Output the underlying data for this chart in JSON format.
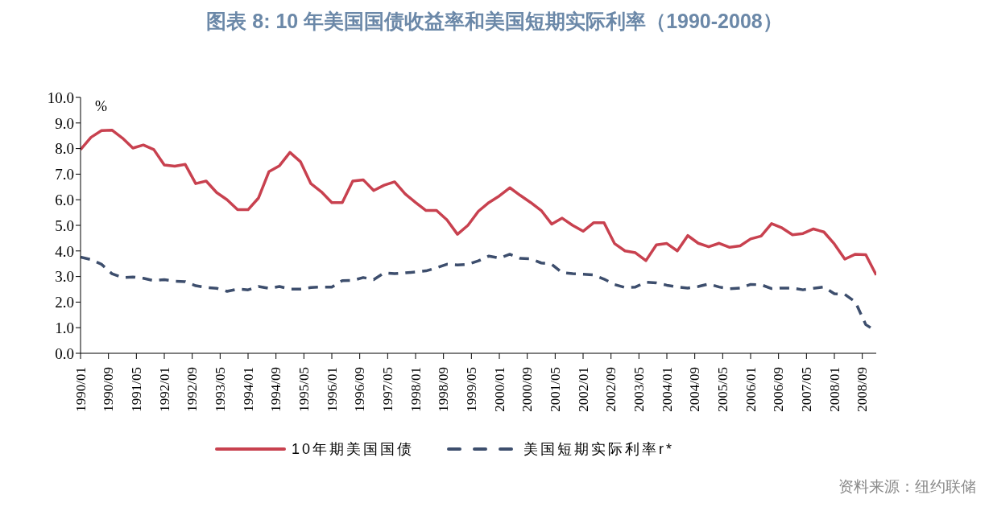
{
  "chart_data": {
    "type": "line",
    "title": "图表 8: 10 年美国国债收益率和美国短期实际利率（1990-2008）",
    "ylabel": "%",
    "x": [
      "1990-01",
      "1990-04",
      "1990-07",
      "1990-10",
      "1991-01",
      "1991-04",
      "1991-07",
      "1991-10",
      "1992-01",
      "1992-04",
      "1992-07",
      "1992-10",
      "1993-01",
      "1993-04",
      "1993-07",
      "1993-10",
      "1994-01",
      "1994-04",
      "1994-07",
      "1994-10",
      "1995-01",
      "1995-04",
      "1995-07",
      "1995-10",
      "1996-01",
      "1996-04",
      "1996-07",
      "1996-10",
      "1997-01",
      "1997-04",
      "1997-07",
      "1997-10",
      "1998-01",
      "1998-04",
      "1998-07",
      "1998-10",
      "1999-01",
      "1999-04",
      "1999-07",
      "1999-10",
      "2000-01",
      "2000-04",
      "2000-07",
      "2000-10",
      "2001-01",
      "2001-04",
      "2001-07",
      "2001-10",
      "2002-01",
      "2002-04",
      "2002-07",
      "2002-10",
      "2003-01",
      "2003-04",
      "2003-07",
      "2003-10",
      "2004-01",
      "2004-04",
      "2004-07",
      "2004-10",
      "2005-01",
      "2005-04",
      "2005-07",
      "2005-10",
      "2006-01",
      "2006-04",
      "2006-07",
      "2006-10",
      "2007-01",
      "2007-04",
      "2007-07",
      "2007-10",
      "2008-01",
      "2008-04",
      "2008-07",
      "2008-10",
      "2009-01"
    ],
    "series": [
      {
        "name": "10年期美国国债",
        "color": "#c8414f",
        "line_style": "solid",
        "values": [
          7.96,
          8.44,
          8.7,
          8.72,
          8.41,
          8.02,
          8.14,
          7.96,
          7.36,
          7.31,
          7.38,
          6.63,
          6.73,
          6.28,
          6.0,
          5.61,
          5.61,
          6.07,
          7.1,
          7.33,
          7.85,
          7.49,
          6.63,
          6.31,
          5.89,
          5.89,
          6.73,
          6.78,
          6.36,
          6.57,
          6.7,
          6.23,
          5.89,
          5.58,
          5.58,
          5.21,
          4.65,
          5.0,
          5.55,
          5.89,
          6.15,
          6.47,
          6.17,
          5.89,
          5.58,
          5.05,
          5.28,
          5.0,
          4.77,
          5.1,
          5.1,
          4.29,
          4.0,
          3.93,
          3.62,
          4.24,
          4.29,
          4.0,
          4.6,
          4.3,
          4.16,
          4.3,
          4.14,
          4.2,
          4.47,
          4.58,
          5.07,
          4.9,
          4.63,
          4.68,
          4.86,
          4.74,
          4.27,
          3.68,
          3.87,
          3.85,
          3.06
        ]
      },
      {
        "name": "美国短期实际利率r*",
        "color": "#3d4e6d",
        "line_style": "dashed",
        "values": [
          3.76,
          3.66,
          3.48,
          3.11,
          2.96,
          2.98,
          2.93,
          2.84,
          2.88,
          2.82,
          2.8,
          2.64,
          2.57,
          2.54,
          2.42,
          2.51,
          2.48,
          2.61,
          2.54,
          2.61,
          2.51,
          2.51,
          2.57,
          2.59,
          2.59,
          2.84,
          2.85,
          2.96,
          2.88,
          3.14,
          3.11,
          3.14,
          3.18,
          3.22,
          3.34,
          3.48,
          3.45,
          3.48,
          3.61,
          3.8,
          3.72,
          3.87,
          3.71,
          3.69,
          3.53,
          3.48,
          3.15,
          3.11,
          3.09,
          3.06,
          2.9,
          2.69,
          2.57,
          2.59,
          2.78,
          2.75,
          2.66,
          2.59,
          2.55,
          2.61,
          2.71,
          2.59,
          2.52,
          2.55,
          2.69,
          2.68,
          2.53,
          2.55,
          2.55,
          2.48,
          2.54,
          2.59,
          2.33,
          2.3,
          2.01,
          1.12,
          0.86
        ]
      }
    ],
    "xlim": [
      "1990-01",
      "2009-01"
    ],
    "xticks": [
      {
        "value": "1990-01",
        "label": "1990/01"
      },
      {
        "value": "1990-09",
        "label": "1990/09"
      },
      {
        "value": "1991-05",
        "label": "1991/05"
      },
      {
        "value": "1992-01",
        "label": "1992/01"
      },
      {
        "value": "1992-09",
        "label": "1992/09"
      },
      {
        "value": "1993-05",
        "label": "1993/05"
      },
      {
        "value": "1994-01",
        "label": "1994/01"
      },
      {
        "value": "1994-09",
        "label": "1994/09"
      },
      {
        "value": "1995-05",
        "label": "1995/05"
      },
      {
        "value": "1996-01",
        "label": "1996/01"
      },
      {
        "value": "1996-09",
        "label": "1996/09"
      },
      {
        "value": "1997-05",
        "label": "1997/05"
      },
      {
        "value": "1998-01",
        "label": "1998/01"
      },
      {
        "value": "1998-09",
        "label": "1998/09"
      },
      {
        "value": "1999-05",
        "label": "1999/05"
      },
      {
        "value": "2000-01",
        "label": "2000/01"
      },
      {
        "value": "2000-09",
        "label": "2000/09"
      },
      {
        "value": "2001-05",
        "label": "2001/05"
      },
      {
        "value": "2002-01",
        "label": "2002/01"
      },
      {
        "value": "2002-09",
        "label": "2002/09"
      },
      {
        "value": "2003-05",
        "label": "2003/05"
      },
      {
        "value": "2004-01",
        "label": "2004/01"
      },
      {
        "value": "2004-09",
        "label": "2004/09"
      },
      {
        "value": "2005-05",
        "label": "2005/05"
      },
      {
        "value": "2006-01",
        "label": "2006/01"
      },
      {
        "value": "2006-09",
        "label": "2006/09"
      },
      {
        "value": "2007-05",
        "label": "2007/05"
      },
      {
        "value": "2008-01",
        "label": "2008/01"
      },
      {
        "value": "2008-09",
        "label": "2008/09"
      }
    ],
    "ylim": [
      0,
      10
    ],
    "yticks": [
      {
        "value": 0,
        "label": "0.0"
      },
      {
        "value": 1,
        "label": "1.0"
      },
      {
        "value": 2,
        "label": "2.0"
      },
      {
        "value": 3,
        "label": "3.0"
      },
      {
        "value": 4,
        "label": "4.0"
      },
      {
        "value": 5,
        "label": "5.0"
      },
      {
        "value": 6,
        "label": "6.0"
      },
      {
        "value": 7,
        "label": "7.0"
      },
      {
        "value": 8,
        "label": "8.0"
      },
      {
        "value": 9,
        "label": "9.0"
      },
      {
        "value": 10,
        "label": "10.0"
      }
    ],
    "grid": false,
    "legend": "bottom",
    "marker": "none",
    "annotations": [
      "资料来源：纽约联储"
    ]
  }
}
